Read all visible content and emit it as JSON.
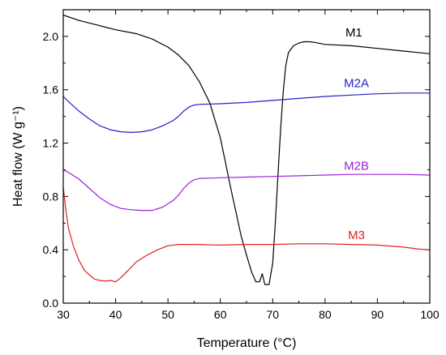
{
  "chart_data": {
    "type": "line",
    "xlabel": "Temperature (°C)",
    "ylabel": "Heat flow (W g⁻¹)",
    "xlim": [
      30,
      100
    ],
    "ylim": [
      0.0,
      2.2
    ],
    "xticks": [
      "30",
      "40",
      "50",
      "60",
      "70",
      "80",
      "90",
      "100"
    ],
    "yticks": [
      "0.0",
      "0.4",
      "0.8",
      "1.2",
      "1.6",
      "2.0"
    ],
    "grid": false,
    "legend": "inline labels",
    "series": [
      {
        "name": "M1",
        "color": "#000000",
        "label_at": [
          85.5,
          2.0
        ],
        "points": [
          [
            30,
            2.16
          ],
          [
            33,
            2.12
          ],
          [
            36,
            2.09
          ],
          [
            40,
            2.05
          ],
          [
            44,
            2.02
          ],
          [
            47,
            1.98
          ],
          [
            50,
            1.92
          ],
          [
            52,
            1.86
          ],
          [
            54,
            1.78
          ],
          [
            56,
            1.66
          ],
          [
            58,
            1.5
          ],
          [
            60,
            1.24
          ],
          [
            61,
            1.05
          ],
          [
            62,
            0.86
          ],
          [
            63,
            0.68
          ],
          [
            64,
            0.5
          ],
          [
            65,
            0.36
          ],
          [
            66,
            0.23
          ],
          [
            66.8,
            0.16
          ],
          [
            67.5,
            0.16
          ],
          [
            68,
            0.22
          ],
          [
            68.5,
            0.14
          ],
          [
            69.3,
            0.14
          ],
          [
            70,
            0.3
          ],
          [
            70.5,
            0.6
          ],
          [
            71,
            0.95
          ],
          [
            71.5,
            1.3
          ],
          [
            72,
            1.58
          ],
          [
            72.5,
            1.78
          ],
          [
            73,
            1.88
          ],
          [
            74,
            1.93
          ],
          [
            75,
            1.95
          ],
          [
            76,
            1.96
          ],
          [
            77,
            1.96
          ],
          [
            78,
            1.955
          ],
          [
            80,
            1.94
          ],
          [
            85,
            1.93
          ],
          [
            90,
            1.91
          ],
          [
            95,
            1.89
          ],
          [
            100,
            1.87
          ]
        ]
      },
      {
        "name": "M2A",
        "color": "#2222cc",
        "label_at": [
          86,
          1.62
        ],
        "points": [
          [
            30,
            1.55
          ],
          [
            31,
            1.51
          ],
          [
            33,
            1.44
          ],
          [
            35,
            1.38
          ],
          [
            37,
            1.33
          ],
          [
            39,
            1.3
          ],
          [
            41,
            1.285
          ],
          [
            43,
            1.28
          ],
          [
            45,
            1.285
          ],
          [
            47,
            1.3
          ],
          [
            49,
            1.33
          ],
          [
            51,
            1.37
          ],
          [
            52,
            1.4
          ],
          [
            53,
            1.44
          ],
          [
            54,
            1.47
          ],
          [
            55,
            1.485
          ],
          [
            56,
            1.49
          ],
          [
            60,
            1.495
          ],
          [
            65,
            1.505
          ],
          [
            70,
            1.52
          ],
          [
            75,
            1.535
          ],
          [
            80,
            1.55
          ],
          [
            85,
            1.56
          ],
          [
            90,
            1.57
          ],
          [
            95,
            1.575
          ],
          [
            100,
            1.575
          ]
        ]
      },
      {
        "name": "M2B",
        "color": "#9a22dd",
        "label_at": [
          86,
          1.0
        ],
        "points": [
          [
            30,
            1.0
          ],
          [
            31,
            0.98
          ],
          [
            33,
            0.93
          ],
          [
            35,
            0.86
          ],
          [
            37,
            0.79
          ],
          [
            39,
            0.74
          ],
          [
            41,
            0.71
          ],
          [
            43,
            0.7
          ],
          [
            45,
            0.695
          ],
          [
            47,
            0.695
          ],
          [
            49,
            0.72
          ],
          [
            51,
            0.77
          ],
          [
            52,
            0.81
          ],
          [
            53,
            0.86
          ],
          [
            54,
            0.9
          ],
          [
            55,
            0.925
          ],
          [
            56,
            0.935
          ],
          [
            60,
            0.94
          ],
          [
            65,
            0.945
          ],
          [
            70,
            0.95
          ],
          [
            75,
            0.955
          ],
          [
            80,
            0.96
          ],
          [
            85,
            0.965
          ],
          [
            90,
            0.965
          ],
          [
            95,
            0.965
          ],
          [
            100,
            0.96
          ]
        ]
      },
      {
        "name": "M3",
        "color": "#dd2222",
        "label_at": [
          86,
          0.48
        ],
        "points": [
          [
            30,
            0.87
          ],
          [
            30.5,
            0.7
          ],
          [
            31,
            0.56
          ],
          [
            32,
            0.42
          ],
          [
            33,
            0.32
          ],
          [
            34,
            0.25
          ],
          [
            35,
            0.21
          ],
          [
            36,
            0.18
          ],
          [
            37,
            0.17
          ],
          [
            38,
            0.165
          ],
          [
            39,
            0.17
          ],
          [
            40,
            0.16
          ],
          [
            41,
            0.19
          ],
          [
            42,
            0.23
          ],
          [
            43,
            0.27
          ],
          [
            44,
            0.31
          ],
          [
            46,
            0.36
          ],
          [
            48,
            0.4
          ],
          [
            50,
            0.43
          ],
          [
            52,
            0.44
          ],
          [
            55,
            0.44
          ],
          [
            60,
            0.435
          ],
          [
            65,
            0.44
          ],
          [
            70,
            0.44
          ],
          [
            75,
            0.445
          ],
          [
            80,
            0.445
          ],
          [
            85,
            0.44
          ],
          [
            90,
            0.435
          ],
          [
            95,
            0.42
          ],
          [
            98,
            0.405
          ],
          [
            100,
            0.4
          ]
        ]
      }
    ]
  }
}
